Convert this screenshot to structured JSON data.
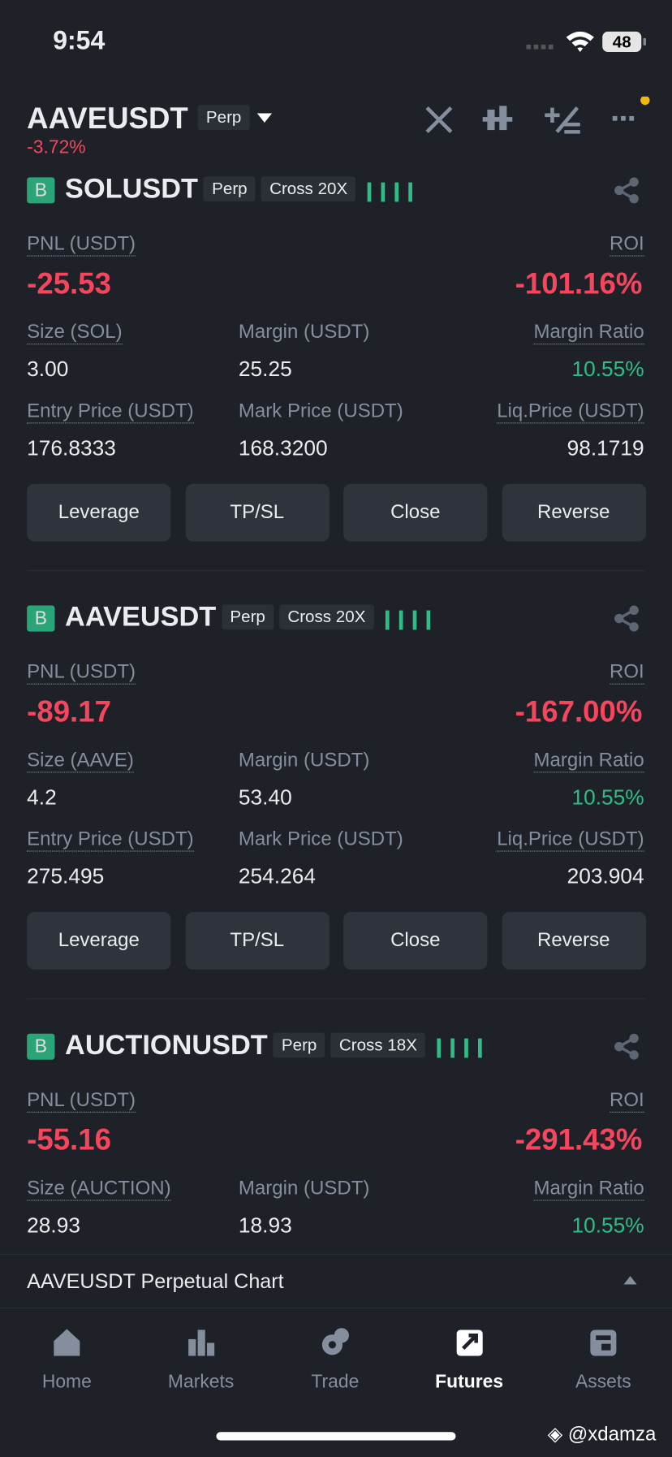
{
  "status": {
    "time": "9:54",
    "battery": "48"
  },
  "header": {
    "symbol": "AAVEUSDT",
    "badge": "Perp",
    "change": "-3.72%"
  },
  "position_buttons": [
    "Leverage",
    "TP/SL",
    "Close",
    "Reverse"
  ],
  "positions": [
    {
      "side": "B",
      "symbol": "SOLUSDT",
      "type": "Perp",
      "mode": "Cross 20X",
      "pnl_label": "PNL (USDT)",
      "pnl": "-25.53",
      "roi_label": "ROI",
      "roi": "-101.16%",
      "fields": [
        {
          "label": "Size (SOL)",
          "value": "3.00"
        },
        {
          "label": "Margin (USDT)",
          "value": "25.25"
        },
        {
          "label": "Margin Ratio",
          "value": "10.55%"
        },
        {
          "label": "Entry Price (USDT)",
          "value": "176.8333"
        },
        {
          "label": "Mark Price (USDT)",
          "value": "168.3200"
        },
        {
          "label": "Liq.Price (USDT)",
          "value": "98.1719"
        }
      ]
    },
    {
      "side": "B",
      "symbol": "AAVEUSDT",
      "type": "Perp",
      "mode": "Cross 20X",
      "pnl_label": "PNL (USDT)",
      "pnl": "-89.17",
      "roi_label": "ROI",
      "roi": "-167.00%",
      "fields": [
        {
          "label": "Size (AAVE)",
          "value": "4.2"
        },
        {
          "label": "Margin (USDT)",
          "value": "53.40"
        },
        {
          "label": "Margin Ratio",
          "value": "10.55%"
        },
        {
          "label": "Entry Price (USDT)",
          "value": "275.495"
        },
        {
          "label": "Mark Price (USDT)",
          "value": "254.264"
        },
        {
          "label": "Liq.Price (USDT)",
          "value": "203.904"
        }
      ]
    },
    {
      "side": "B",
      "symbol": "AUCTIONUSDT",
      "type": "Perp",
      "mode": "Cross 18X",
      "pnl_label": "PNL (USDT)",
      "pnl": "-55.16",
      "roi_label": "ROI",
      "roi": "-291.43%",
      "fields": [
        {
          "label": "Size (AUCTION)",
          "value": "28.93"
        },
        {
          "label": "Margin (USDT)",
          "value": "18.93"
        },
        {
          "label": "Margin Ratio",
          "value": "10.55%"
        }
      ]
    }
  ],
  "chart_bar": "AAVEUSDT Perpetual  Chart",
  "nav": [
    {
      "label": "Home"
    },
    {
      "label": "Markets"
    },
    {
      "label": "Trade"
    },
    {
      "label": "Futures"
    },
    {
      "label": "Assets"
    }
  ],
  "watermark": "@xdamza"
}
